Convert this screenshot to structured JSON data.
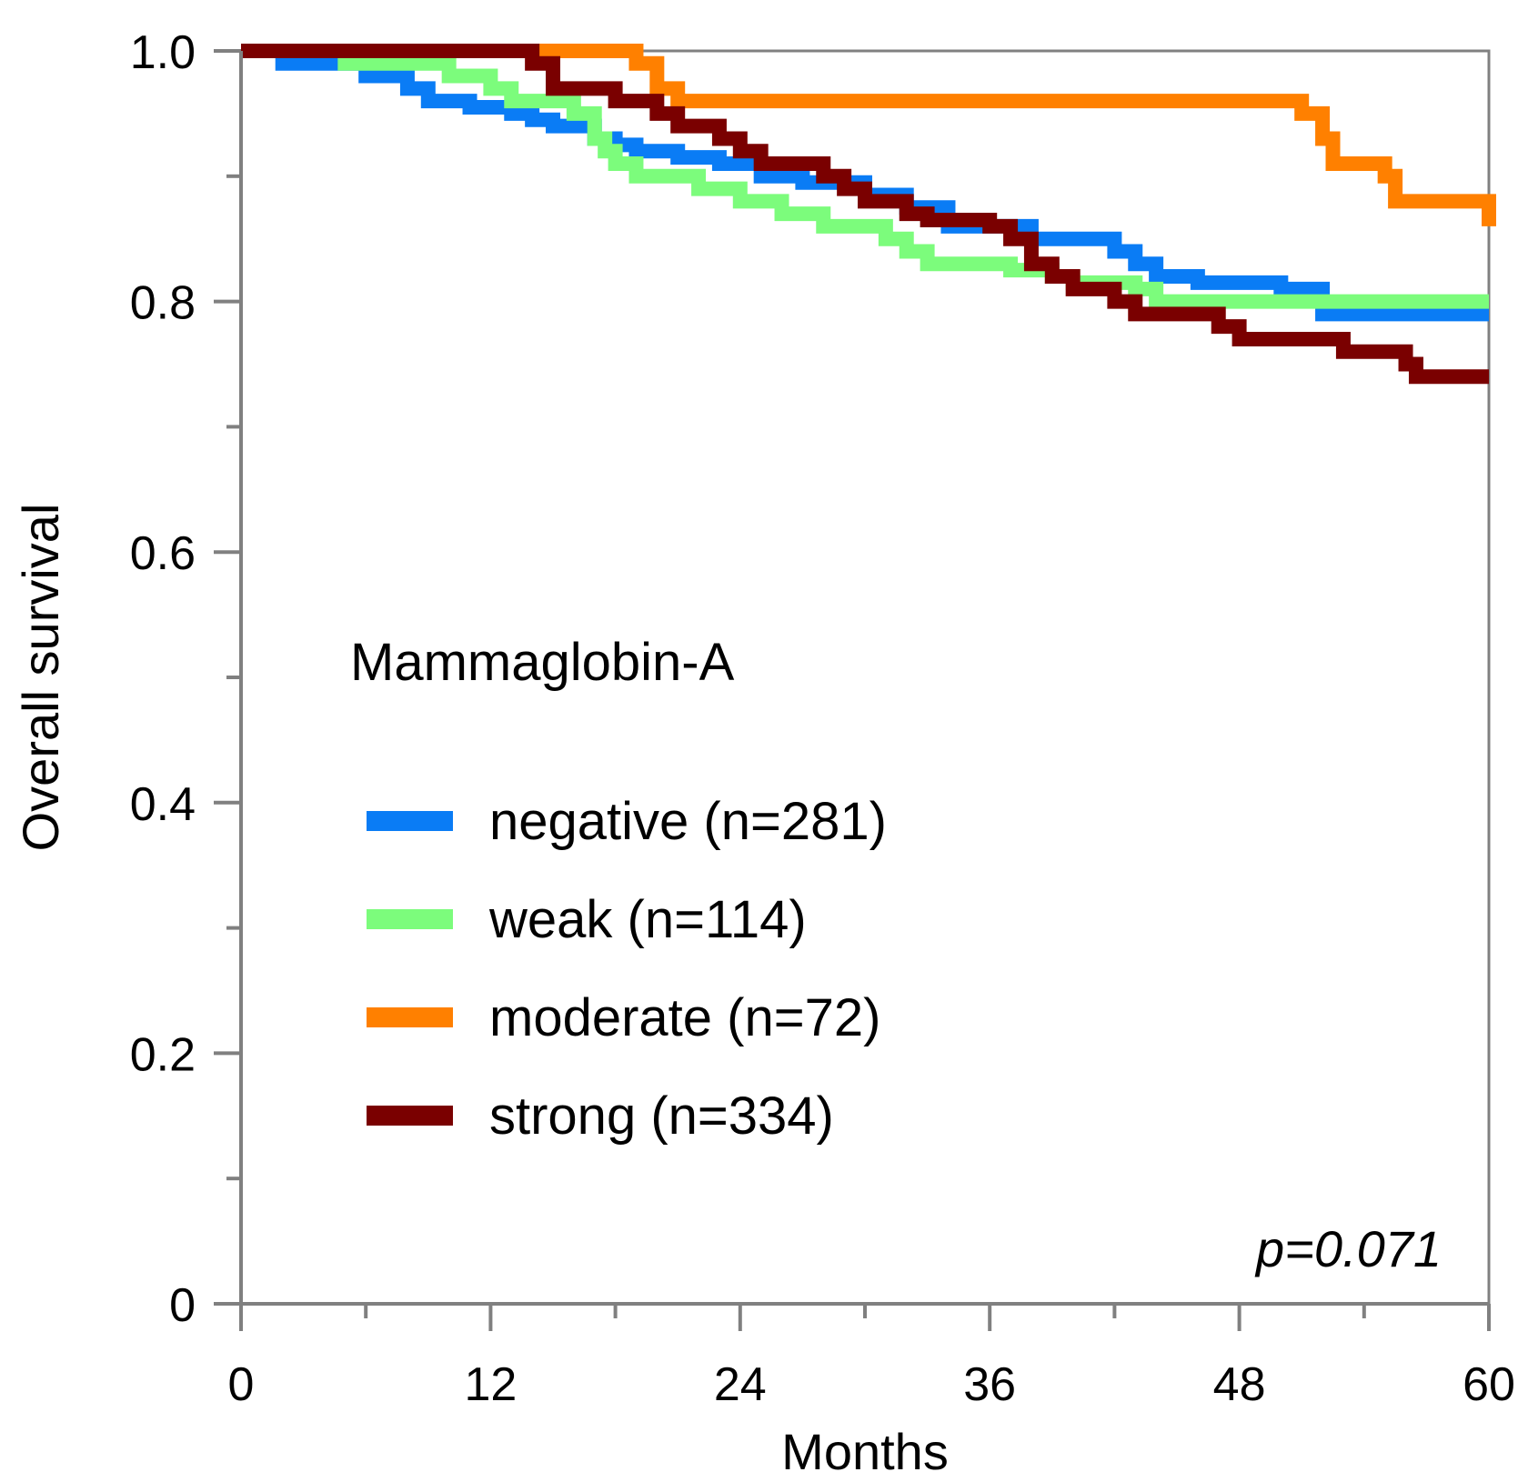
{
  "chart_data": {
    "type": "line",
    "subtype": "kaplan-meier step",
    "xlabel": "Months",
    "ylabel": "Overall survival",
    "xlim": [
      0,
      60
    ],
    "ylim": [
      0,
      1.0
    ],
    "x_ticks": [
      0,
      12,
      24,
      36,
      48,
      60
    ],
    "x_minor_ticks": [
      6,
      18,
      30,
      42,
      54
    ],
    "y_ticks": [
      0,
      0.2,
      0.4,
      0.6,
      0.8,
      1.0
    ],
    "y_tick_labels": [
      "0",
      "0.2",
      "0.4",
      "0.6",
      "0.8",
      "1.0"
    ],
    "y_minor_ticks": [
      0.1,
      0.3,
      0.5,
      0.7,
      0.9
    ],
    "legend_title": "Mammaglobin-A",
    "annotation": "p=0.071",
    "series": [
      {
        "name": "negative (n=281)",
        "color": "#0a7cf5",
        "points": [
          [
            0,
            1.0
          ],
          [
            2,
            0.99
          ],
          [
            6,
            0.98
          ],
          [
            8,
            0.97
          ],
          [
            9,
            0.96
          ],
          [
            11,
            0.955
          ],
          [
            13,
            0.95
          ],
          [
            14,
            0.945
          ],
          [
            15,
            0.94
          ],
          [
            17,
            0.93
          ],
          [
            18,
            0.925
          ],
          [
            19,
            0.92
          ],
          [
            21,
            0.915
          ],
          [
            23,
            0.91
          ],
          [
            25,
            0.9
          ],
          [
            27,
            0.895
          ],
          [
            30,
            0.885
          ],
          [
            32,
            0.875
          ],
          [
            34,
            0.86
          ],
          [
            38,
            0.85
          ],
          [
            42,
            0.84
          ],
          [
            43,
            0.83
          ],
          [
            44,
            0.82
          ],
          [
            46,
            0.815
          ],
          [
            50,
            0.81
          ],
          [
            52,
            0.79
          ],
          [
            60,
            0.79
          ]
        ]
      },
      {
        "name": "weak (n=114)",
        "color": "#7cfc7c",
        "points": [
          [
            0,
            1.0
          ],
          [
            5,
            0.99
          ],
          [
            10,
            0.98
          ],
          [
            12,
            0.97
          ],
          [
            13,
            0.96
          ],
          [
            16,
            0.95
          ],
          [
            17,
            0.93
          ],
          [
            17.5,
            0.92
          ],
          [
            18,
            0.91
          ],
          [
            19,
            0.9
          ],
          [
            22,
            0.89
          ],
          [
            24,
            0.88
          ],
          [
            26,
            0.87
          ],
          [
            28,
            0.86
          ],
          [
            31,
            0.85
          ],
          [
            32,
            0.84
          ],
          [
            33,
            0.83
          ],
          [
            37,
            0.825
          ],
          [
            39,
            0.82
          ],
          [
            40,
            0.815
          ],
          [
            43,
            0.81
          ],
          [
            44,
            0.8
          ],
          [
            60,
            0.8
          ]
        ]
      },
      {
        "name": "moderate (n=72)",
        "color": "#ff8000",
        "points": [
          [
            0,
            1.0
          ],
          [
            19,
            0.99
          ],
          [
            20,
            0.97
          ],
          [
            21,
            0.96
          ],
          [
            51,
            0.95
          ],
          [
            52,
            0.93
          ],
          [
            52.5,
            0.91
          ],
          [
            55,
            0.9
          ],
          [
            55.5,
            0.88
          ],
          [
            60,
            0.86
          ]
        ]
      },
      {
        "name": "strong (n=334)",
        "color": "#7a0000",
        "points": [
          [
            0,
            1.0
          ],
          [
            14,
            0.99
          ],
          [
            15,
            0.97
          ],
          [
            18,
            0.96
          ],
          [
            20,
            0.95
          ],
          [
            21,
            0.94
          ],
          [
            23,
            0.93
          ],
          [
            24,
            0.92
          ],
          [
            25,
            0.91
          ],
          [
            28,
            0.9
          ],
          [
            29,
            0.89
          ],
          [
            30,
            0.88
          ],
          [
            32,
            0.87
          ],
          [
            33,
            0.865
          ],
          [
            36,
            0.86
          ],
          [
            37,
            0.85
          ],
          [
            38,
            0.83
          ],
          [
            39,
            0.82
          ],
          [
            40,
            0.81
          ],
          [
            42,
            0.8
          ],
          [
            43,
            0.79
          ],
          [
            47,
            0.78
          ],
          [
            48,
            0.77
          ],
          [
            53,
            0.76
          ],
          [
            56,
            0.75
          ],
          [
            56.5,
            0.74
          ],
          [
            60,
            0.74
          ]
        ]
      }
    ]
  }
}
